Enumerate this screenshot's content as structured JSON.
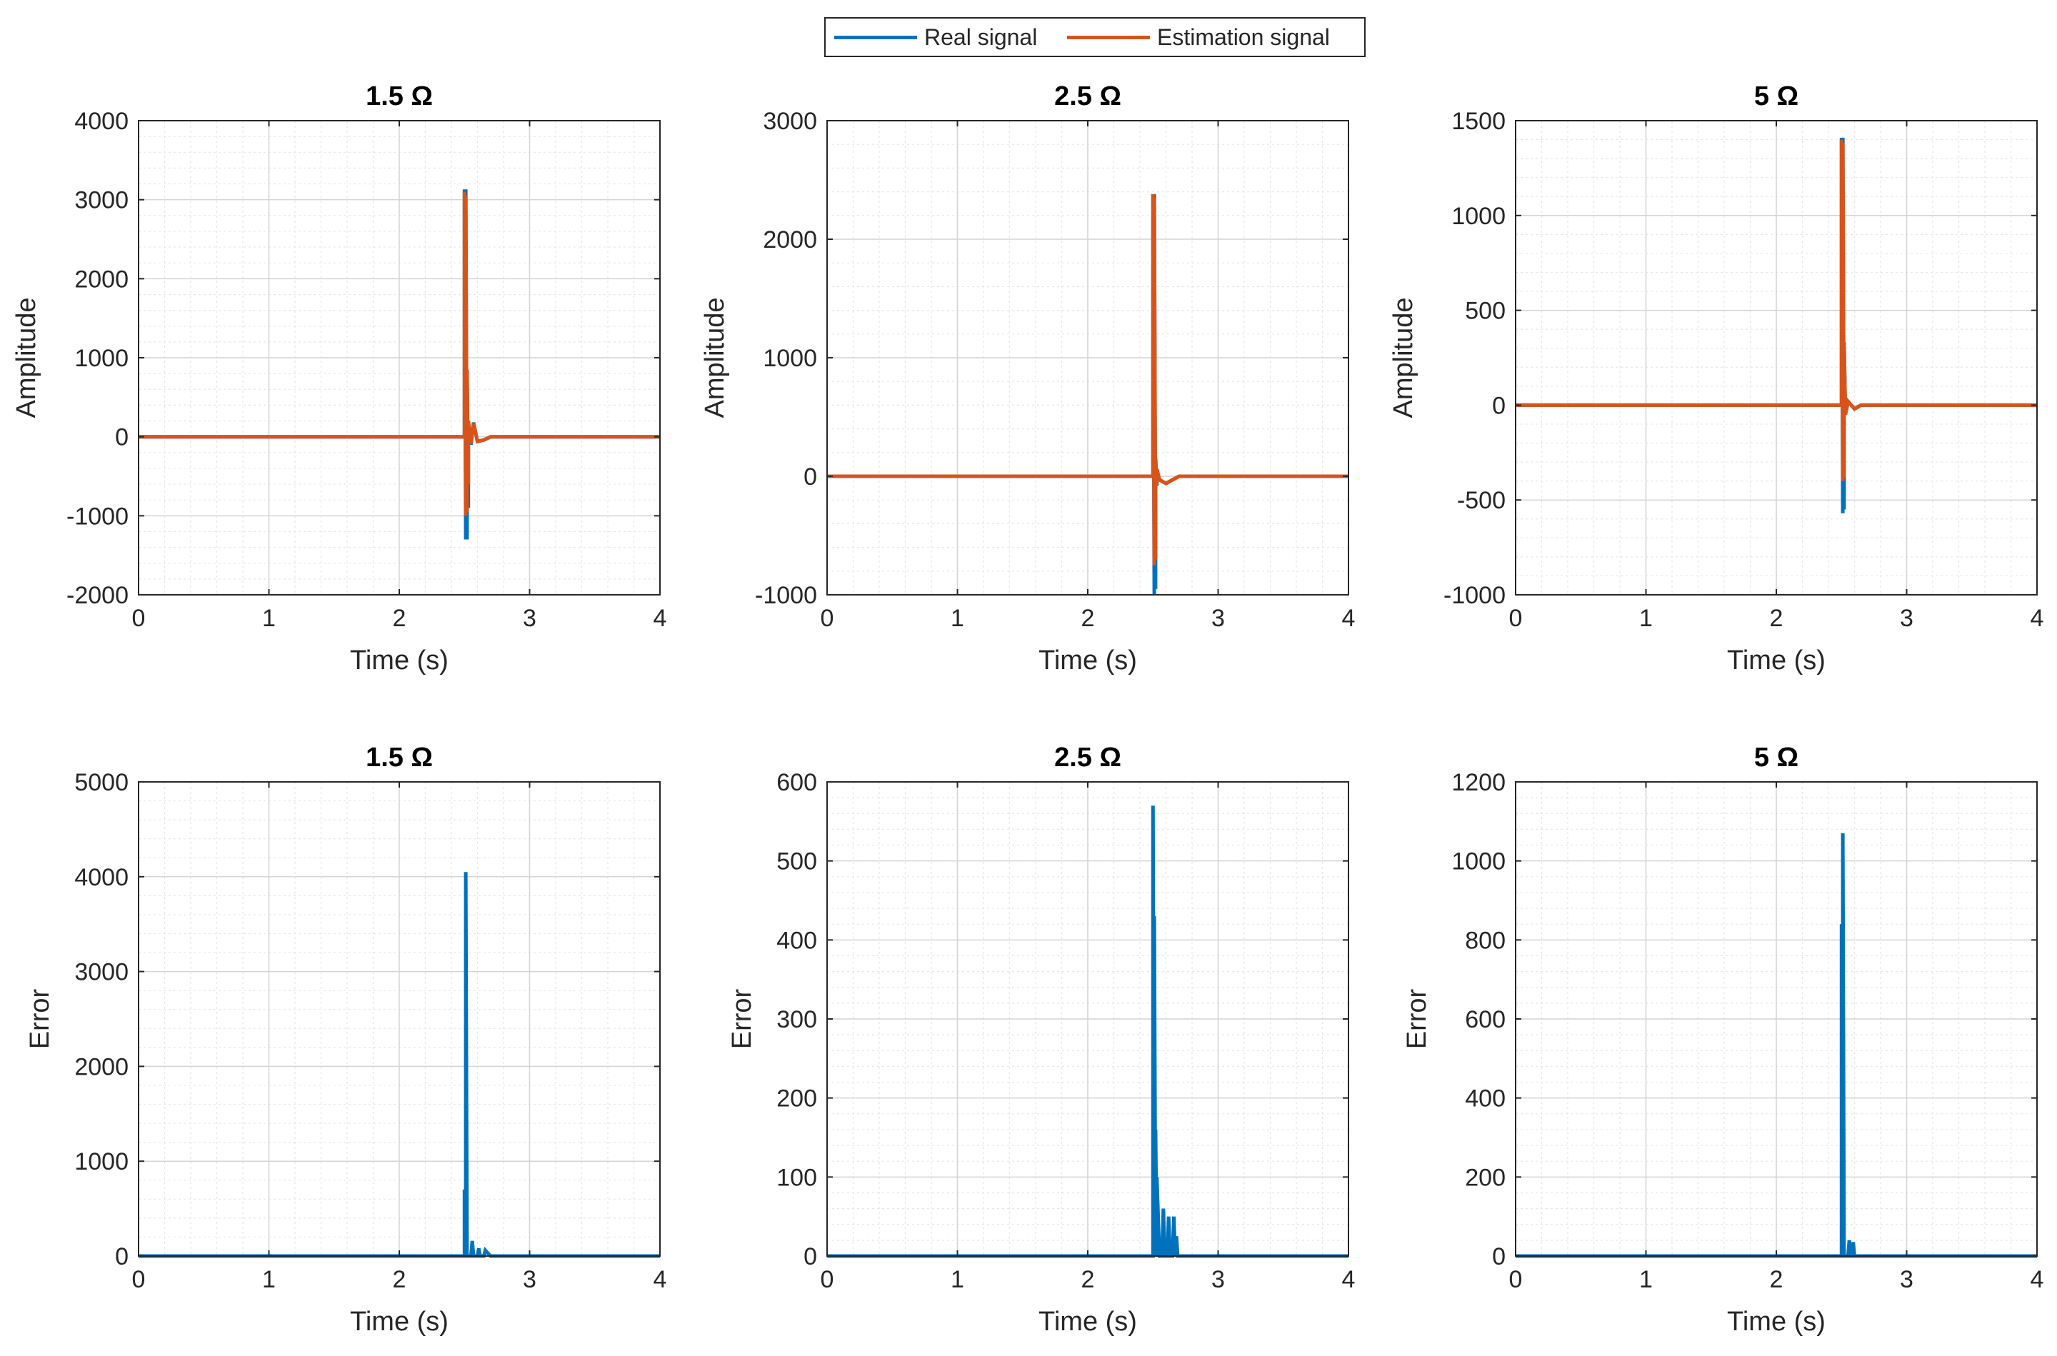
{
  "legend": {
    "items": [
      {
        "label": "Real signal",
        "color": "#0072BD"
      },
      {
        "label": "Estimation signal",
        "color": "#D95319"
      }
    ]
  },
  "chart_data": [
    {
      "type": "line",
      "title": "1.5 Ω",
      "xlabel": "Time (s)",
      "ylabel": "Amplitude",
      "xlim": [
        0,
        4
      ],
      "ylim": [
        -2000,
        4000
      ],
      "xticks": [
        "0",
        "1",
        "2",
        "3",
        "4"
      ],
      "yticks": [
        "-2000",
        "-1000",
        "0",
        "1000",
        "2000",
        "3000",
        "4000"
      ],
      "grid": true,
      "series": [
        {
          "name": "Real signal",
          "color": "#0072BD",
          "x": [
            0,
            2.5,
            2.5,
            2.51,
            2.51,
            2.52,
            2.52,
            2.53,
            2.53,
            2.55,
            2.57,
            2.6,
            2.65,
            2.7,
            4
          ],
          "y": [
            0,
            0,
            3130,
            -1300,
            3130,
            -1300,
            800,
            -900,
            200,
            -100,
            180,
            -60,
            -40,
            0,
            0
          ]
        },
        {
          "name": "Estimation signal",
          "color": "#D95319",
          "x": [
            0,
            2.5,
            2.5,
            2.51,
            2.51,
            2.52,
            2.52,
            2.53,
            2.53,
            2.55,
            2.57,
            2.6,
            2.65,
            2.7,
            4
          ],
          "y": [
            0,
            0,
            3100,
            -1000,
            3050,
            -950,
            850,
            -600,
            200,
            -90,
            170,
            -60,
            -40,
            0,
            0
          ]
        }
      ]
    },
    {
      "type": "line",
      "title": "2.5 Ω",
      "xlabel": "Time (s)",
      "ylabel": "Amplitude",
      "xlim": [
        0,
        4
      ],
      "ylim": [
        -1000,
        3000
      ],
      "xticks": [
        "0",
        "1",
        "2",
        "3",
        "4"
      ],
      "yticks": [
        "-1000",
        "0",
        "1000",
        "2000",
        "3000"
      ],
      "grid": true,
      "series": [
        {
          "name": "Real signal",
          "color": "#0072BD",
          "x": [
            0,
            2.5,
            2.5,
            2.51,
            2.51,
            2.52,
            2.52,
            2.53,
            2.53,
            2.55,
            2.6,
            2.65,
            2.7,
            4
          ],
          "y": [
            0,
            0,
            2380,
            -1000,
            2380,
            -950,
            150,
            -80,
            60,
            -30,
            -60,
            -30,
            0,
            0
          ]
        },
        {
          "name": "Estimation signal",
          "color": "#D95319",
          "x": [
            0,
            2.5,
            2.5,
            2.51,
            2.51,
            2.52,
            2.52,
            2.53,
            2.53,
            2.55,
            2.6,
            2.65,
            2.7,
            4
          ],
          "y": [
            0,
            0,
            2380,
            -750,
            2350,
            -700,
            150,
            -70,
            60,
            -30,
            -60,
            -30,
            0,
            0
          ]
        }
      ]
    },
    {
      "type": "line",
      "title": "5 Ω",
      "xlabel": "Time (s)",
      "ylabel": "Amplitude",
      "xlim": [
        0,
        4
      ],
      "ylim": [
        -1000,
        1500
      ],
      "xticks": [
        "0",
        "1",
        "2",
        "3",
        "4"
      ],
      "yticks": [
        "-1000",
        "-500",
        "0",
        "500",
        "1000",
        "1500"
      ],
      "grid": true,
      "series": [
        {
          "name": "Real signal",
          "color": "#0072BD",
          "x": [
            0,
            2.5,
            2.5,
            2.51,
            2.51,
            2.52,
            2.52,
            2.53,
            2.55,
            2.6,
            2.65,
            4
          ],
          "y": [
            0,
            0,
            1410,
            -570,
            1410,
            -550,
            330,
            -50,
            20,
            -20,
            0,
            0
          ]
        },
        {
          "name": "Estimation signal",
          "color": "#D95319",
          "x": [
            0,
            2.5,
            2.5,
            2.51,
            2.51,
            2.52,
            2.52,
            2.53,
            2.55,
            2.6,
            2.65,
            4
          ],
          "y": [
            0,
            0,
            1400,
            -400,
            1380,
            -380,
            330,
            -50,
            20,
            -20,
            0,
            0
          ]
        }
      ]
    },
    {
      "type": "line",
      "title": "1.5 Ω",
      "xlabel": "Time (s)",
      "ylabel": "Error",
      "xlim": [
        0,
        4
      ],
      "ylim": [
        0,
        5000
      ],
      "xticks": [
        "0",
        "1",
        "2",
        "3",
        "4"
      ],
      "yticks": [
        "0",
        "1000",
        "2000",
        "3000",
        "4000",
        "5000"
      ],
      "grid": true,
      "series": [
        {
          "name": "Error",
          "color": "#0072BD",
          "x": [
            0,
            2.5,
            2.5,
            2.51,
            2.51,
            2.52,
            2.53,
            2.55,
            2.56,
            2.57,
            2.6,
            2.61,
            2.62,
            2.65,
            2.66,
            2.7,
            4
          ],
          "y": [
            0,
            0,
            700,
            0,
            4050,
            0,
            0,
            0,
            160,
            0,
            0,
            80,
            0,
            0,
            60,
            0,
            0
          ]
        }
      ]
    },
    {
      "type": "line",
      "title": "2.5 Ω",
      "xlabel": "Time (s)",
      "ylabel": "Error",
      "xlim": [
        0,
        4
      ],
      "ylim": [
        0,
        600
      ],
      "xticks": [
        "0",
        "1",
        "2",
        "3",
        "4"
      ],
      "yticks": [
        "0",
        "100",
        "200",
        "300",
        "400",
        "500",
        "600"
      ],
      "grid": true,
      "series": [
        {
          "name": "Error",
          "color": "#0072BD",
          "x": [
            0,
            2.5,
            2.5,
            2.51,
            2.51,
            2.52,
            2.52,
            2.53,
            2.53,
            2.55,
            2.57,
            2.58,
            2.59,
            2.61,
            2.62,
            2.63,
            2.65,
            2.66,
            2.67,
            2.68,
            2.69,
            4
          ],
          "y": [
            0,
            0,
            570,
            0,
            430,
            0,
            160,
            0,
            100,
            0,
            0,
            60,
            0,
            0,
            50,
            0,
            0,
            50,
            0,
            25,
            0,
            0
          ]
        }
      ]
    },
    {
      "type": "line",
      "title": "5 Ω",
      "xlabel": "Time (s)",
      "ylabel": "Error",
      "xlim": [
        0,
        4
      ],
      "ylim": [
        0,
        1200
      ],
      "xticks": [
        "0",
        "1",
        "2",
        "3",
        "4"
      ],
      "yticks": [
        "0",
        "200",
        "400",
        "600",
        "800",
        "1000",
        "1200"
      ],
      "grid": true,
      "series": [
        {
          "name": "Error",
          "color": "#0072BD",
          "x": [
            0,
            2.5,
            2.5,
            2.51,
            2.51,
            2.52,
            2.55,
            2.56,
            2.57,
            2.58,
            2.59,
            2.6,
            4
          ],
          "y": [
            0,
            0,
            840,
            0,
            1070,
            0,
            0,
            40,
            0,
            0,
            35,
            0,
            0
          ]
        }
      ]
    }
  ]
}
